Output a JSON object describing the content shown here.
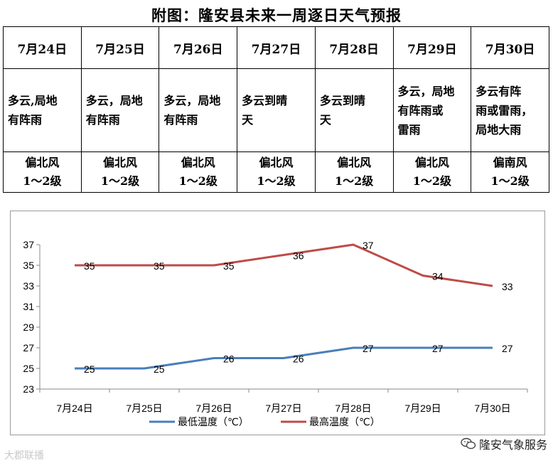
{
  "title": "附图：隆安县未来一周逐日天气预报",
  "forecast": [
    {
      "date": "7月24日",
      "weather": [
        "多云,局地",
        "有阵雨"
      ],
      "wind": [
        "偏北风",
        "1～2级"
      ]
    },
    {
      "date": "7月25日",
      "weather": [
        "多云，局地",
        "有阵雨"
      ],
      "wind": [
        "偏北风",
        "1～2级"
      ]
    },
    {
      "date": "7月26日",
      "weather": [
        "多云，局地",
        "有阵雨"
      ],
      "wind": [
        "偏北风",
        "1～2级"
      ]
    },
    {
      "date": "7月27日",
      "weather": [
        "多云到晴",
        "天"
      ],
      "wind": [
        "偏北风",
        "1～2级"
      ]
    },
    {
      "date": "7月28日",
      "weather": [
        "多云到晴",
        "天"
      ],
      "wind": [
        "偏北风",
        "1～2级"
      ]
    },
    {
      "date": "7月29日",
      "weather": [
        "多云，局地",
        "有阵雨或",
        "雷雨"
      ],
      "wind": [
        "偏北风",
        "1～2级"
      ]
    },
    {
      "date": "7月30日",
      "weather": [
        "多云有阵",
        "雨或雷雨，",
        "局地大雨"
      ],
      "wind": [
        "偏南风",
        "1～2级"
      ]
    }
  ],
  "chart_data": {
    "type": "line",
    "categories": [
      "7月24日",
      "7月25日",
      "7月26日",
      "7月27日",
      "7月28日",
      "7月29日",
      "7月30日"
    ],
    "series": [
      {
        "name": "最低温度（℃）",
        "color": "#4a7ebb",
        "values": [
          25,
          25,
          26,
          26,
          27,
          27,
          27
        ]
      },
      {
        "name": "最高温度（℃）",
        "color": "#be4b48",
        "values": [
          35,
          35,
          35,
          36,
          37,
          34,
          33
        ]
      }
    ],
    "ylim": [
      23,
      37
    ],
    "yticks": [
      23,
      25,
      27,
      29,
      31,
      33,
      35,
      37
    ],
    "grid": false,
    "legend": "bottom",
    "data_labels": true
  },
  "watermarks": {
    "right": "隆安气象服务",
    "left": "大郡联播"
  }
}
